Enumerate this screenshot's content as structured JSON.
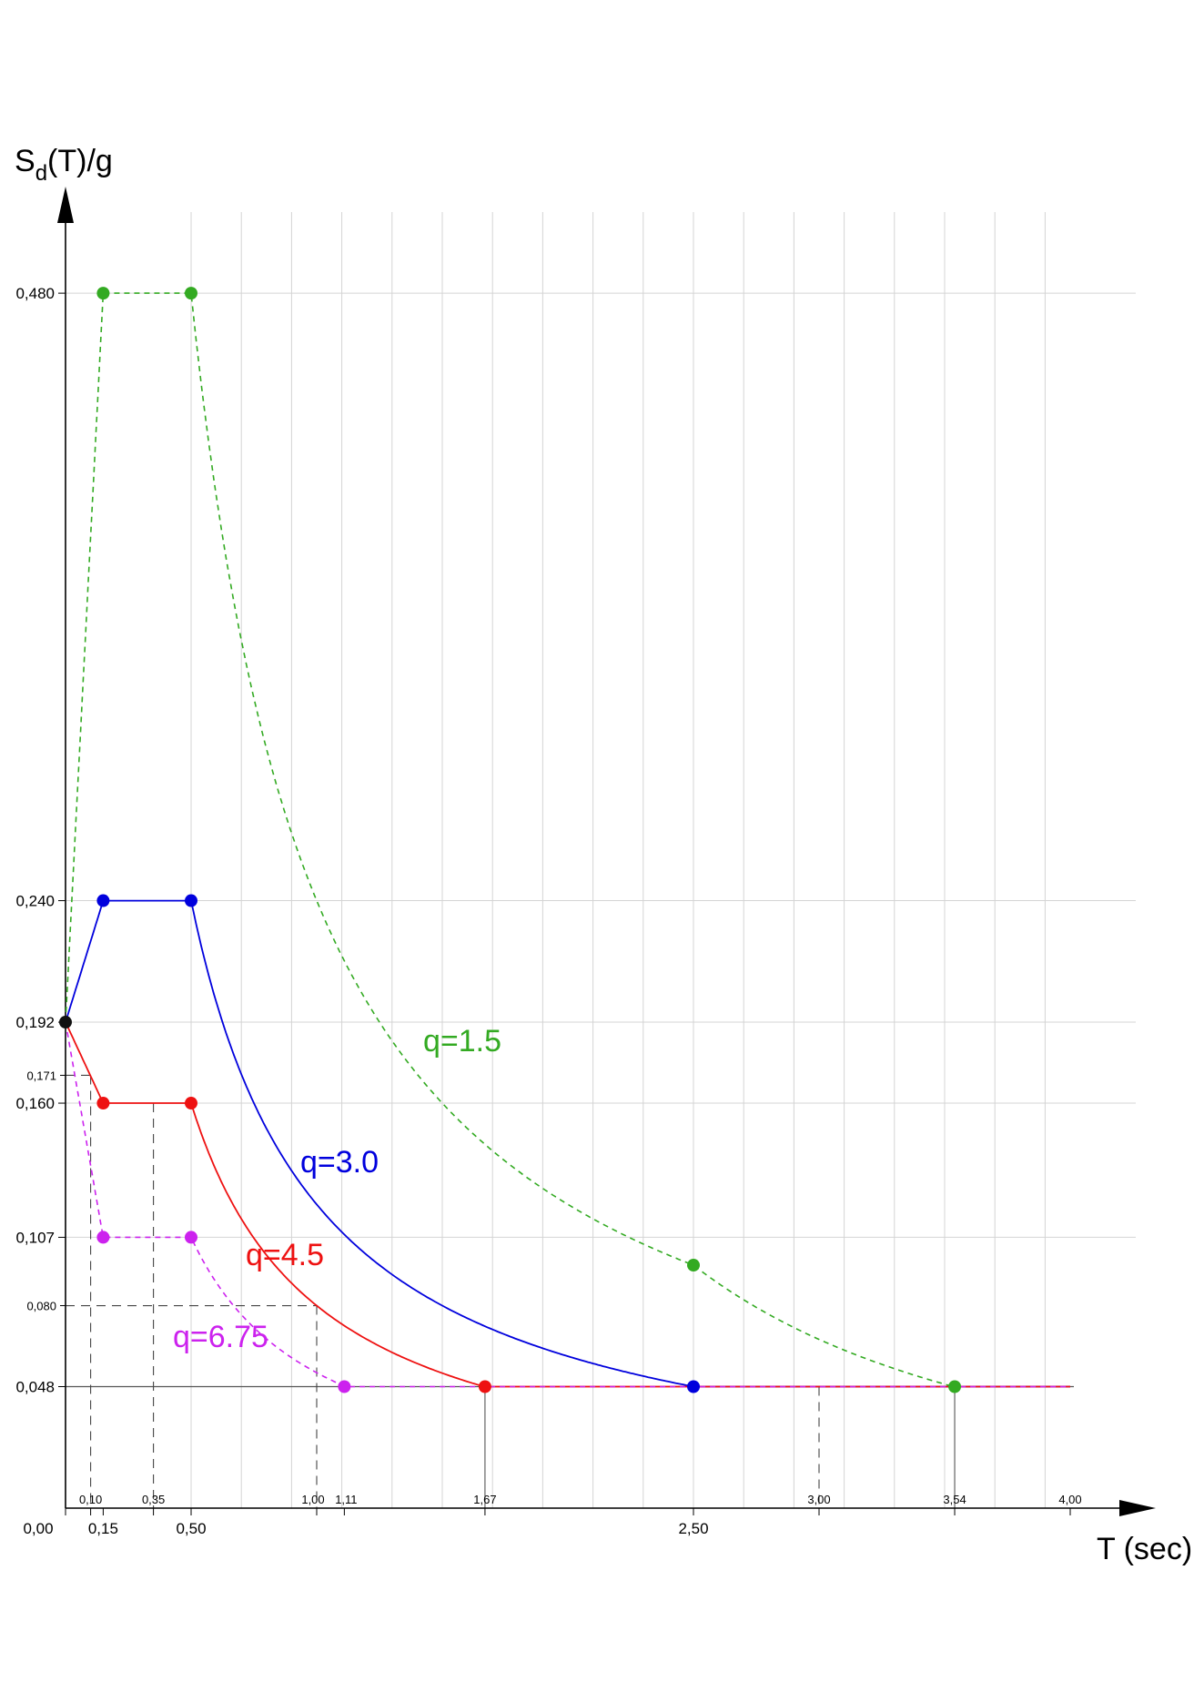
{
  "chart_data": {
    "type": "line",
    "title": "",
    "ylabel_main": "S",
    "ylabel_sub": "d",
    "ylabel_rest": "(T)/g",
    "xlabel": "T (sec)",
    "xlim": [
      0,
      4.3
    ],
    "ylim": [
      0,
      0.53
    ],
    "grid": true,
    "y_tick_values": [
      0.48,
      0.24,
      0.192,
      0.171,
      0.16,
      0.107,
      0.08,
      0.048
    ],
    "y_tick_labels": [
      "0,480",
      "0,240",
      "0,192",
      "0,171",
      "0,160",
      "0,107",
      "0,080",
      "0,048"
    ],
    "x_ticks_major": [
      {
        "value": 0.0,
        "label": "0,00"
      },
      {
        "value": 0.15,
        "label": "0,15"
      },
      {
        "value": 0.5,
        "label": "0,50"
      },
      {
        "value": 2.5,
        "label": "2,50"
      }
    ],
    "x_ticks_minor": [
      {
        "value": 0.1,
        "label": "0,10"
      },
      {
        "value": 0.35,
        "label": "0,35"
      },
      {
        "value": 1.0,
        "label": "1,00"
      },
      {
        "value": 1.11,
        "label": "1,11"
      },
      {
        "value": 1.67,
        "label": "1,67"
      },
      {
        "value": 3.0,
        "label": "3,00"
      },
      {
        "value": 3.54,
        "label": "3,54"
      },
      {
        "value": 4.0,
        "label": "4,00"
      }
    ],
    "series": [
      {
        "label": "q=1.5",
        "color": "#33aa22",
        "dashed": true,
        "t_b": 0.15,
        "t_c": 0.5,
        "t_d": 2.5,
        "plateau": 0.48,
        "floor": 0.048,
        "markers": [
          [
            0.15,
            0.48
          ],
          [
            0.5,
            0.48
          ],
          [
            2.5,
            0.096
          ],
          [
            3.54,
            0.048
          ]
        ]
      },
      {
        "label": "q=3.0",
        "color": "#0000dd",
        "dashed": false,
        "t_b": 0.15,
        "t_c": 0.5,
        "t_d": 2.5,
        "plateau": 0.24,
        "floor": 0.048,
        "markers": [
          [
            0.15,
            0.24
          ],
          [
            0.5,
            0.24
          ],
          [
            2.5,
            0.048
          ]
        ]
      },
      {
        "label": "q=4.5",
        "color": "#ee1111",
        "dashed": false,
        "t_b": 0.15,
        "t_c": 0.5,
        "t_d": 2.5,
        "plateau": 0.16,
        "floor": 0.048,
        "markers": [
          [
            0.15,
            0.16
          ],
          [
            0.5,
            0.16
          ],
          [
            1.67,
            0.048
          ]
        ]
      },
      {
        "label": "q=6.75",
        "color": "#cc22ee",
        "dashed": true,
        "t_b": 0.15,
        "t_c": 0.5,
        "t_d": 2.5,
        "plateau": 0.107,
        "floor": 0.048,
        "markers": [
          [
            0.15,
            0.107
          ],
          [
            0.5,
            0.107
          ],
          [
            1.11,
            0.048
          ]
        ]
      }
    ],
    "origin_marker": [
      0.0,
      0.192
    ],
    "x_end": 4.0
  }
}
